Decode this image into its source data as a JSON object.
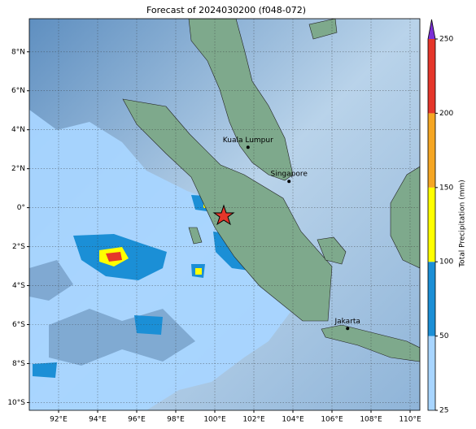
{
  "map": {
    "title": "Forecast of 2024030200 (f048-072)",
    "lon_range": [
      90.5,
      110.5
    ],
    "lat_range": [
      -10.4,
      9.7
    ],
    "lon_ticks": [
      {
        "value": 92,
        "label": "92°E"
      },
      {
        "value": 94,
        "label": "94°E"
      },
      {
        "value": 96,
        "label": "96°E"
      },
      {
        "value": 98,
        "label": "98°E"
      },
      {
        "value": 100,
        "label": "100°E"
      },
      {
        "value": 102,
        "label": "102°E"
      },
      {
        "value": 104,
        "label": "104°E"
      },
      {
        "value": 106,
        "label": "106°E"
      },
      {
        "value": 108,
        "label": "108°E"
      },
      {
        "value": 110,
        "label": "110°E"
      }
    ],
    "lat_ticks": [
      {
        "value": 8,
        "label": "8°N"
      },
      {
        "value": 6,
        "label": "6°N"
      },
      {
        "value": 4,
        "label": "4°N"
      },
      {
        "value": 2,
        "label": "2°N"
      },
      {
        "value": 0,
        "label": "0°"
      },
      {
        "value": -2,
        "label": "2°S"
      },
      {
        "value": -4,
        "label": "4°S"
      },
      {
        "value": -6,
        "label": "6°S"
      },
      {
        "value": -8,
        "label": "8°S"
      },
      {
        "value": -10,
        "label": "10°S"
      }
    ],
    "cities": [
      {
        "name": "Kuala Lumpur",
        "lon": 101.7,
        "lat": 3.1
      },
      {
        "name": "Singapore",
        "lon": 103.8,
        "lat": 1.35
      },
      {
        "name": "Jakarta",
        "lon": 106.8,
        "lat": -6.2
      }
    ],
    "colorbar": {
      "label": "Total Precipitation (mm)",
      "levels": [
        25,
        50,
        100,
        150,
        200,
        250
      ],
      "colors": [
        "#a8d5ff",
        "#1b8fd6",
        "#ffff00",
        "#f5a623",
        "#e5362a"
      ],
      "extend_color": "#7b2fd6"
    }
  }
}
